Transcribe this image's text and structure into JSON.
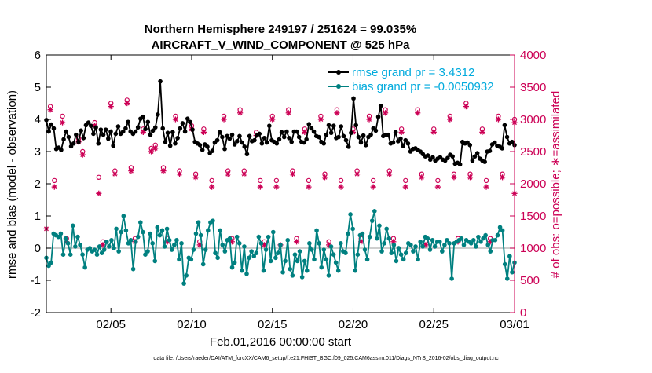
{
  "chart_data": {
    "type": "line",
    "title_lines": [
      "Northern Hemisphere 249197 / 251624 = 99.035%",
      "AIRCRAFT_V_WIND_COMPONENT @ 525 hPa"
    ],
    "xlabel": "Feb.01,2016 00:00:00 start",
    "ylabel_left": "rmse and bias (model - observation)",
    "ylabel_right": "# of obs: o=possible; ∗=assimilated",
    "footer": "data file: /Users/raeder/DAI/ATM_forcXX/CAM6_setup/f.e21.FHIST_BGC.f09_025.CAM6assim.011/Diags_NTrS_2016-02/obs_diag_output.nc",
    "xlim": [
      1,
      30
    ],
    "ylim_left": [
      -2,
      6
    ],
    "ylim_right": [
      0,
      4000
    ],
    "x_ticks": [
      5,
      10,
      15,
      20,
      25,
      30
    ],
    "x_tick_labels": [
      "02/05",
      "02/10",
      "02/15",
      "02/20",
      "02/25",
      "03/01"
    ],
    "y_ticks_left": [
      -2,
      -1,
      0,
      1,
      2,
      3,
      4,
      5,
      6
    ],
    "y_tick_labels_left": [
      "-2",
      "-1",
      "0",
      "1",
      "2",
      "3",
      "4",
      "5",
      "6"
    ],
    "y_ticks_right": [
      0,
      500,
      1000,
      1500,
      2000,
      2500,
      3000,
      3500,
      4000
    ],
    "y_tick_labels_right": [
      "0",
      "500",
      "1000",
      "1500",
      "2000",
      "2500",
      "3000",
      "3500",
      "4000"
    ],
    "legend_position": "top-right",
    "colors": {
      "rmse": "#000000",
      "bias": "#008080",
      "obs": "#cc0055",
      "legend_text": "#00aadd",
      "right_axis": "#cc0055",
      "zero_line": "#b0b0b0"
    },
    "series": [
      {
        "name": "rmse grand pr = 3.4312",
        "values": [
          3.98,
          3.62,
          3.84,
          3.72,
          3.08,
          3.12,
          3.05,
          3.38,
          3.62,
          3.45,
          3.16,
          3.25,
          3.52,
          3.3,
          3.65,
          3.42,
          3.82,
          3.9,
          3.8,
          3.55,
          3.75,
          3.25,
          3.68,
          3.52,
          3.68,
          3.4,
          3.62,
          3.18,
          3.55,
          3.78,
          3.55,
          3.62,
          3.72,
          3.92,
          3.62,
          3.55,
          3.62,
          3.75,
          4.02,
          4.08,
          3.7,
          3.92,
          3.52,
          3.65,
          3.75,
          4.15,
          5.18,
          3.72,
          3.3,
          3.58,
          3.18,
          3.6,
          3.25,
          3.42,
          3.72,
          3.88,
          3.62,
          4.02,
          3.92,
          3.68,
          3.3,
          3.25,
          3.2,
          3.05,
          3.22,
          3.15,
          2.95,
          3.02,
          3.28,
          3.35,
          3.6,
          3.45,
          3.08,
          3.48,
          3.4,
          3.52,
          3.22,
          3.32,
          3.48,
          3.28,
          3.15,
          2.92,
          3.48,
          3.32,
          3.35,
          3.5,
          3.55,
          3.25,
          3.42,
          3.28,
          3.8,
          3.35,
          3.3,
          3.25,
          3.38,
          3.6,
          3.45,
          3.62,
          3.42,
          3.3,
          3.62,
          3.62,
          3.45,
          3.3,
          3.28,
          3.38,
          3.85,
          3.72,
          3.62,
          3.48,
          3.45,
          3.3,
          3.25,
          3.52,
          3.82,
          3.58,
          3.8,
          3.42,
          3.45,
          3.78,
          3.48,
          3.35,
          3.15,
          3.58,
          4.65,
          3.82,
          3.45,
          3.28,
          3.5,
          3.2,
          3.45,
          3.52,
          3.72,
          3.65,
          4.08,
          4.42,
          3.48,
          3.52,
          3.52,
          3.25,
          3.28,
          3.6,
          3.32,
          3.4,
          3.18,
          3.35,
          3.25,
          3.0,
          3.08,
          3.1,
          3.05,
          3.0,
          2.92,
          2.85,
          2.88,
          2.75,
          2.82,
          2.72,
          2.78,
          2.82,
          2.75,
          2.72,
          2.8,
          2.9,
          2.85,
          2.62,
          2.65,
          2.6,
          3.3,
          3.25,
          3.28,
          3.2,
          2.72,
          2.85,
          2.95,
          2.78,
          2.72,
          2.68,
          3.0,
          3.02,
          3.22,
          3.28,
          3.18,
          3.15,
          3.1,
          3.82,
          3.45,
          3.25,
          3.3,
          3.2
        ]
      },
      {
        "name": "bias grand pr = -0.0050932",
        "values": [
          -0.3,
          -0.55,
          -0.45,
          0.45,
          0.4,
          0.35,
          0.45,
          -0.2,
          0.3,
          0.15,
          -0.2,
          0.7,
          0.05,
          0.35,
          0.1,
          -0.2,
          -0.6,
          -0.05,
          0.0,
          -0.1,
          -0.05,
          -0.2,
          0.05,
          -0.15,
          -0.05,
          0.2,
          0.05,
          0.25,
          0.0,
          0.6,
          -0.1,
          0.5,
          1.0,
          0.55,
          0.15,
          0.25,
          -0.65,
          0.2,
          0.35,
          0.8,
          0.5,
          -0.2,
          -0.1,
          0.45,
          0.15,
          -0.4,
          0.65,
          0.4,
          0.55,
          0.05,
          0.6,
          0.25,
          -0.05,
          0.1,
          0.25,
          -0.35,
          0.15,
          -1.1,
          -0.85,
          -0.3,
          -0.35,
          -0.05,
          0.45,
          0.8,
          0.4,
          -0.5,
          -0.05,
          0.55,
          0.8,
          0.85,
          -0.15,
          -0.3,
          0.55,
          0.1,
          -0.1,
          0.25,
          0.3,
          -0.6,
          -0.45,
          0.35,
          0.15,
          -0.7,
          0.05,
          -0.8,
          -0.3,
          -0.1,
          -0.25,
          -0.15,
          0.35,
          0.15,
          -0.7,
          -0.05,
          0.35,
          -0.4,
          0.5,
          -0.3,
          -0.15,
          0.1,
          -0.75,
          -0.4,
          0.25,
          -0.65,
          -0.85,
          -0.2,
          -0.4,
          -0.1,
          -0.9,
          -0.4,
          -0.7,
          0.15,
          -0.05,
          -0.35,
          0.55,
          0.15,
          -0.6,
          -0.05,
          -0.35,
          -0.85,
          0.05,
          -0.2,
          -0.45,
          -0.7,
          0.15,
          -0.1,
          -0.15,
          0.45,
          1.05,
          0.6,
          -0.7,
          -0.2,
          0.4,
          0.45,
          -0.05,
          -0.35,
          0.35,
          0.85,
          1.15,
          0.3,
          0.7,
          -0.1,
          0.15,
          0.6,
          0.3,
          -0.15,
          0.1,
          -0.4,
          0.0,
          -0.2,
          -0.35,
          -0.15,
          0.15,
          0.1,
          -0.1,
          0.05,
          -0.35,
          0.2,
          0.05,
          0.35,
          0.3,
          -0.05,
          0.25,
          0.05,
          0.2,
          0.2,
          -0.1,
          0.1,
          0.25,
          0.15,
          -0.95,
          0.15,
          0.2,
          0.25,
          0.3,
          0.1,
          0.25,
          0.2,
          0.15,
          0.25,
          0.05,
          0.35,
          0.2,
          0.3,
          0.4,
          0.1,
          -0.1,
          0.25,
          0.25,
          0.4,
          0.65,
          0.55,
          -0.5,
          -0.95,
          -0.25,
          -0.75,
          -0.45
        ]
      },
      {
        "name": "# of obs possible",
        "marker": "o",
        "x": [
          1.25,
          2.0,
          3.0,
          4.0,
          5.0,
          6.0,
          7.0,
          7.75,
          9.0,
          10.0,
          10.75,
          12.0,
          13.0,
          14.0,
          15.0,
          16.0,
          17.0,
          18.0,
          19.0,
          20.0,
          21.0,
          22.0,
          23.0,
          24.0,
          25.0,
          26.0,
          27.0,
          28.0,
          29.0,
          30.0,
          1.5,
          3.25,
          4.25,
          5.25,
          6.25,
          7.5,
          8.25,
          9.25,
          10.25,
          11.25,
          12.25,
          13.25,
          14.25,
          15.25,
          16.25,
          17.25,
          18.25,
          19.25,
          20.25,
          21.25,
          22.25,
          23.25,
          24.25,
          25.25,
          26.25,
          27.25,
          28.25,
          29.25,
          2.25,
          4.5,
          6.5,
          8.5,
          10.5,
          12.5,
          14.5,
          16.5,
          18.5,
          20.5,
          22.5,
          24.5,
          26.5,
          28.5
        ],
        "values": [
          3200,
          3050,
          2700,
          2950,
          3250,
          3300,
          2850,
          2600,
          3050,
          2900,
          2850,
          3050,
          3150,
          2800,
          3050,
          3150,
          2850,
          3050,
          3150,
          2850,
          3050,
          3150,
          2850,
          3150,
          2850,
          3050,
          3250,
          2850,
          3050,
          3000,
          2050,
          2500,
          2100,
          2200,
          2250,
          2550,
          2250,
          2200,
          2150,
          2050,
          2200,
          2200,
          2050,
          2050,
          2200,
          2050,
          2150,
          2050,
          2200,
          2050,
          2200,
          2050,
          2150,
          2050,
          2150,
          2150,
          2050,
          2150,
          1150,
          1100,
          1150,
          1150,
          1100,
          1150,
          1100,
          1150,
          1100,
          1150,
          1150,
          1100,
          1150,
          1150
        ]
      },
      {
        "name": "# of obs assimilated",
        "marker": "*",
        "x": [
          1.25,
          2.0,
          3.0,
          4.0,
          5.0,
          6.0,
          7.0,
          7.75,
          9.0,
          10.0,
          10.75,
          12.0,
          13.0,
          14.0,
          15.0,
          16.0,
          17.0,
          18.0,
          19.0,
          20.0,
          21.0,
          22.0,
          23.0,
          24.0,
          25.0,
          26.0,
          27.0,
          28.0,
          29.0,
          30.0,
          1.5,
          3.25,
          4.25,
          5.25,
          6.25,
          7.5,
          8.25,
          9.25,
          10.25,
          11.25,
          12.25,
          13.25,
          14.25,
          15.25,
          16.25,
          17.25,
          18.25,
          19.25,
          20.25,
          21.25,
          22.25,
          23.25,
          24.25,
          25.25,
          26.25,
          27.25,
          28.25,
          29.25,
          2.25,
          4.5,
          6.5,
          8.5,
          10.5,
          12.5,
          14.5,
          16.5,
          18.5,
          20.5,
          22.5,
          24.5,
          26.5,
          28.5,
          1.0,
          15.5,
          30.0
        ],
        "values": [
          3150,
          2950,
          2650,
          2900,
          3200,
          3250,
          2800,
          2550,
          3000,
          2850,
          2800,
          3000,
          3100,
          2750,
          3000,
          3100,
          2800,
          3000,
          3100,
          2800,
          3000,
          3100,
          2800,
          3100,
          2800,
          3000,
          3200,
          2800,
          3000,
          2950,
          1950,
          2450,
          1850,
          2150,
          2200,
          2500,
          2200,
          2150,
          2100,
          1950,
          2150,
          2150,
          1950,
          1950,
          2150,
          1950,
          2100,
          1950,
          2150,
          1950,
          2150,
          1950,
          2100,
          1950,
          2100,
          2100,
          1950,
          2100,
          1100,
          1050,
          1100,
          1100,
          1050,
          1100,
          1050,
          1100,
          1050,
          1100,
          1100,
          1050,
          1100,
          1100,
          1300,
          1050,
          1850
        ]
      }
    ]
  }
}
